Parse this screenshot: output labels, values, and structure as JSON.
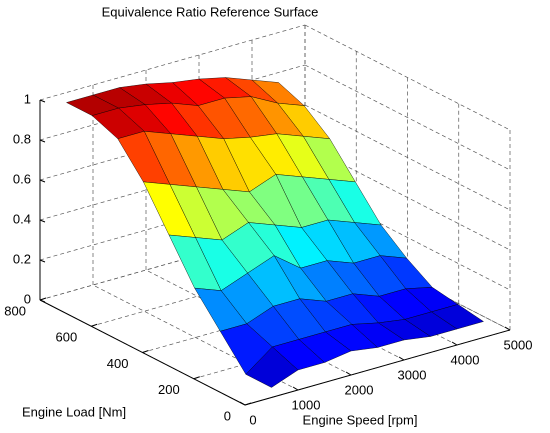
{
  "chart_data": {
    "type": "surface",
    "title": "Equivalence Ratio Reference Surface",
    "xlabel": "Engine Speed [rpm]",
    "ylabel": "Engine Load [Nm]",
    "x": [
      500,
      1000,
      1500,
      2000,
      2500,
      3000,
      3500,
      4000,
      4500
    ],
    "y": [
      0,
      100,
      200,
      300,
      400,
      500,
      600,
      700,
      800
    ],
    "z": [
      [
        0.05,
        0.1,
        0.1,
        0.12,
        0.1,
        0.1,
        0.08,
        0.08,
        0.08
      ],
      [
        0.05,
        0.15,
        0.15,
        0.15,
        0.15,
        0.12,
        0.1,
        0.1,
        0.1
      ],
      [
        0.2,
        0.2,
        0.25,
        0.25,
        0.2,
        0.2,
        0.15,
        0.15,
        0.12
      ],
      [
        0.35,
        0.3,
        0.35,
        0.4,
        0.3,
        0.3,
        0.25,
        0.25,
        0.2
      ],
      [
        0.55,
        0.5,
        0.45,
        0.5,
        0.45,
        0.4,
        0.4,
        0.35,
        0.3
      ],
      [
        0.75,
        0.7,
        0.65,
        0.6,
        0.55,
        0.6,
        0.55,
        0.5,
        0.45
      ],
      [
        0.9,
        0.9,
        0.85,
        0.8,
        0.75,
        0.72,
        0.7,
        0.65,
        0.6
      ],
      [
        0.95,
        0.95,
        0.93,
        0.9,
        0.85,
        0.85,
        0.82,
        0.75,
        0.7
      ],
      [
        0.95,
        0.95,
        0.95,
        0.93,
        0.9,
        0.88,
        0.85,
        0.8,
        0.75
      ]
    ],
    "xlim": [
      0,
      5000
    ],
    "xticks": [
      0,
      1000,
      2000,
      3000,
      4000,
      5000
    ],
    "ylim": [
      0,
      800
    ],
    "yticks": [
      0,
      200,
      400,
      600,
      800
    ],
    "zlim": [
      0,
      1
    ],
    "zticks": [
      0,
      0.2,
      0.4,
      0.6,
      0.8,
      1
    ],
    "colormap": "jet",
    "grid": true
  }
}
